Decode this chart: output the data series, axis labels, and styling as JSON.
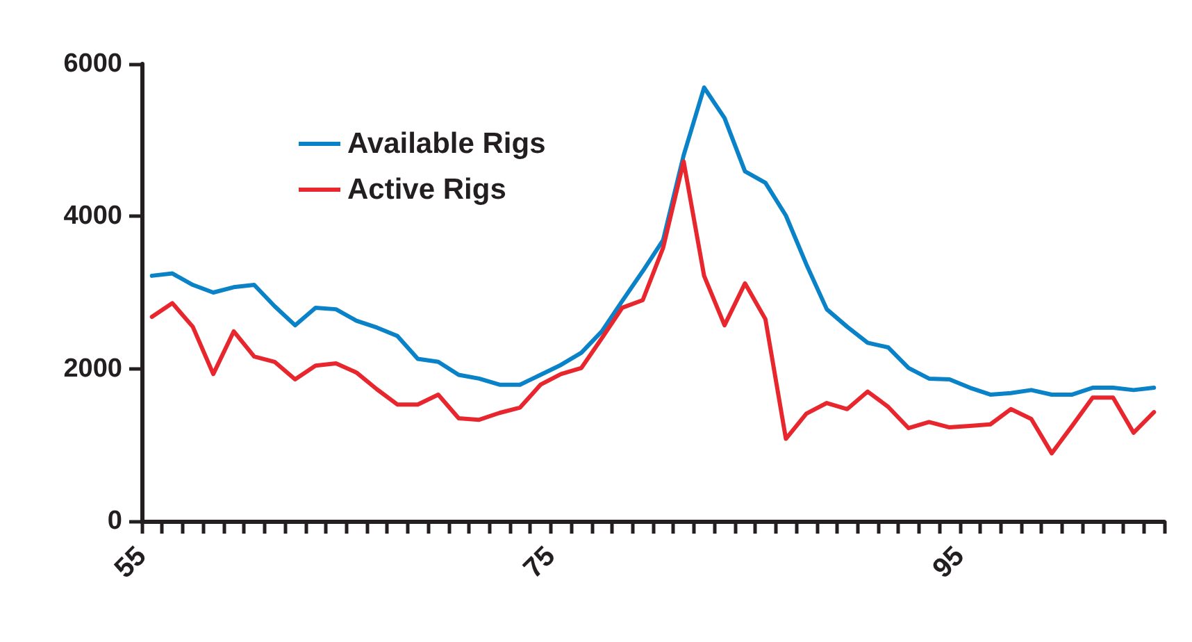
{
  "chart_data": {
    "type": "line",
    "x": [
      55.5,
      56.5,
      57.5,
      58.5,
      59.5,
      60.5,
      61.5,
      62.5,
      63.5,
      64.5,
      65.5,
      66.5,
      67.5,
      68.5,
      69.5,
      70.5,
      71.5,
      72.5,
      73.5,
      74.5,
      75.5,
      76.5,
      77.5,
      78.5,
      79.5,
      80.5,
      81.5,
      82.5,
      83.5,
      84.5,
      85.5,
      86.5,
      87.5,
      88.5,
      89.5,
      90.5,
      91.5,
      92.5,
      93.5,
      94.5,
      95.5,
      96.5,
      97.5,
      98.5,
      99.5,
      100.5,
      101.5,
      102.5,
      103.5,
      104.5
    ],
    "series": [
      {
        "name": "Available Rigs",
        "color": "#0a82c8",
        "values": [
          3220,
          3250,
          3100,
          3000,
          3070,
          3100,
          2820,
          2570,
          2800,
          2780,
          2630,
          2540,
          2430,
          2130,
          2090,
          1920,
          1870,
          1790,
          1790,
          1920,
          2050,
          2210,
          2490,
          2890,
          3280,
          3690,
          4800,
          5690,
          5290,
          4590,
          4440,
          4010,
          3370,
          2780,
          2550,
          2340,
          2280,
          2010,
          1870,
          1860,
          1750,
          1660,
          1680,
          1720,
          1660,
          1660,
          1750,
          1750,
          1720,
          1750
        ]
      },
      {
        "name": "Active Rigs",
        "color": "#e8262d",
        "values": [
          2680,
          2860,
          2550,
          1930,
          2490,
          2160,
          2090,
          1860,
          2040,
          2070,
          1950,
          1730,
          1530,
          1530,
          1660,
          1350,
          1330,
          1420,
          1490,
          1790,
          1930,
          2010,
          2400,
          2800,
          2900,
          3590,
          4720,
          3220,
          2570,
          3120,
          2650,
          1080,
          1410,
          1550,
          1470,
          1700,
          1500,
          1220,
          1300,
          1230,
          1250,
          1270,
          1470,
          1340,
          890,
          1250,
          1620,
          1620,
          1160,
          1430
        ]
      }
    ],
    "xlim": [
      55,
      105
    ],
    "xticks": [
      55,
      {
        "value": 56,
        "label": null
      },
      {
        "value": 57,
        "label": null
      },
      {
        "value": 58,
        "label": null
      },
      {
        "value": 59,
        "label": null
      },
      {
        "value": 60,
        "label": null
      },
      {
        "value": 61,
        "label": null
      },
      {
        "value": 62,
        "label": null
      },
      {
        "value": 63,
        "label": null
      },
      {
        "value": 64,
        "label": null
      },
      {
        "value": 65,
        "label": null
      },
      {
        "value": 66,
        "label": null
      },
      {
        "value": 67,
        "label": null
      },
      {
        "value": 68,
        "label": null
      },
      {
        "value": 69,
        "label": null
      },
      {
        "value": 70,
        "label": null
      },
      {
        "value": 71,
        "label": null
      },
      {
        "value": 72,
        "label": null
      },
      {
        "value": 73,
        "label": null
      },
      {
        "value": 74,
        "label": null
      },
      75,
      {
        "value": 76,
        "label": null
      },
      {
        "value": 77,
        "label": null
      },
      {
        "value": 78,
        "label": null
      },
      {
        "value": 79,
        "label": null
      },
      {
        "value": 80,
        "label": null
      },
      {
        "value": 81,
        "label": null
      },
      {
        "value": 82,
        "label": null
      },
      {
        "value": 83,
        "label": null
      },
      {
        "value": 84,
        "label": null
      },
      {
        "value": 85,
        "label": null
      },
      {
        "value": 86,
        "label": null
      },
      {
        "value": 87,
        "label": null
      },
      {
        "value": 88,
        "label": null
      },
      {
        "value": 89,
        "label": null
      },
      {
        "value": 90,
        "label": null
      },
      {
        "value": 91,
        "label": null
      },
      {
        "value": 92,
        "label": null
      },
      {
        "value": 93,
        "label": null
      },
      {
        "value": 94,
        "label": null
      },
      95,
      {
        "value": 96,
        "label": null
      },
      {
        "value": 97,
        "label": null
      },
      {
        "value": 98,
        "label": null
      },
      {
        "value": 99,
        "label": null
      },
      {
        "value": 100,
        "label": null
      },
      {
        "value": 101,
        "label": null
      },
      {
        "value": 102,
        "label": null
      },
      {
        "value": 103,
        "label": null
      },
      {
        "value": 104,
        "label": null
      },
      {
        "value": 105,
        "label": null
      }
    ],
    "ylim": [
      0,
      6000
    ],
    "yticks": [
      0,
      2000,
      4000,
      6000
    ],
    "grid": false,
    "legend": "top left",
    "marker": "none",
    "line_style": "solid"
  }
}
